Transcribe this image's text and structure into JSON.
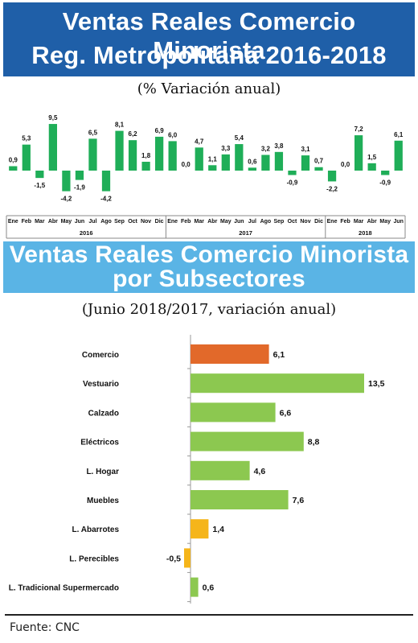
{
  "header": {
    "title_line1": "Ventas Reales Comercio Minorista",
    "title_line2": "Reg. Metropolitana 2016-2018",
    "subtitle": "(% Variación anual)"
  },
  "section2": {
    "title_line1": "Ventas Reales Comercio Minorista",
    "title_line2": "por Subsectores",
    "subtitle": "(Junio 2018/2017, variación anual)"
  },
  "source": "Fuente: CNC",
  "colors": {
    "header_bg": "#1f5fa8",
    "section_bg": "#5ab4e5",
    "monthly_bar": "#1fae58",
    "comercio_bar": "#e2692a",
    "positive_bar": "#8cc850",
    "low_bar": "#f5b51a"
  },
  "chart_data": [
    {
      "type": "bar",
      "title": "",
      "xlabel": "",
      "ylabel": "",
      "categories": [
        "Ene",
        "Feb",
        "Mar",
        "Abr",
        "May",
        "Jun",
        "Jul",
        "Ago",
        "Sep",
        "Oct",
        "Nov",
        "Dic",
        "Ene",
        "Feb",
        "Mar",
        "Abr",
        "May",
        "Jun",
        "Jul",
        "Ago",
        "Sep",
        "Oct",
        "Nov",
        "Dic",
        "Ene",
        "Feb",
        "Mar",
        "Abr",
        "May",
        "Jun"
      ],
      "groups": [
        {
          "label": "2016",
          "count": 12
        },
        {
          "label": "2017",
          "count": 12
        },
        {
          "label": "2018",
          "count": 6
        }
      ],
      "values": [
        0.9,
        5.3,
        -1.5,
        9.5,
        -4.2,
        -1.9,
        6.5,
        -4.2,
        8.1,
        6.2,
        1.8,
        6.9,
        6.0,
        0.0,
        4.7,
        1.1,
        3.3,
        5.4,
        0.6,
        3.2,
        3.8,
        -0.9,
        3.1,
        0.7,
        -2.2,
        0.0,
        7.2,
        1.5,
        -0.9,
        6.1
      ],
      "value_labels": [
        "0,9",
        "5,3",
        "-1,5",
        "9,5",
        "-4,2",
        "-1,9",
        "6,5",
        "-4,2",
        "8,1",
        "6,2",
        "1,8",
        "6,9",
        "6,0",
        "0,0",
        "4,7",
        "1,1",
        "3,3",
        "5,4",
        "0,6",
        "3,2",
        "3,8",
        "-0,9",
        "3,1",
        "0,7",
        "-2,2",
        "0,0",
        "7,2",
        "1,5",
        "-0,9",
        "6,1"
      ],
      "ylim": [
        -4.5,
        9.5
      ]
    },
    {
      "type": "bar",
      "orientation": "horizontal",
      "title": "",
      "categories": [
        "Comercio",
        "Vestuario",
        "Calzado",
        "Eléctricos",
        "L. Hogar",
        "Muebles",
        "L. Abarrotes",
        "L. Perecibles",
        "L. Tradicional Supermercado"
      ],
      "values": [
        6.1,
        13.5,
        6.6,
        8.8,
        4.6,
        7.6,
        1.4,
        -0.5,
        0.6
      ],
      "value_labels": [
        "6,1",
        "13,5",
        "6,6",
        "8,8",
        "4,6",
        "7,6",
        "1,4",
        "-0,5",
        "0,6"
      ],
      "bar_colors": [
        "#e2692a",
        "#8cc850",
        "#8cc850",
        "#8cc850",
        "#8cc850",
        "#8cc850",
        "#f5b51a",
        "#f5b51a",
        "#8cc850"
      ],
      "xlim": [
        -0.5,
        13.5
      ]
    }
  ]
}
